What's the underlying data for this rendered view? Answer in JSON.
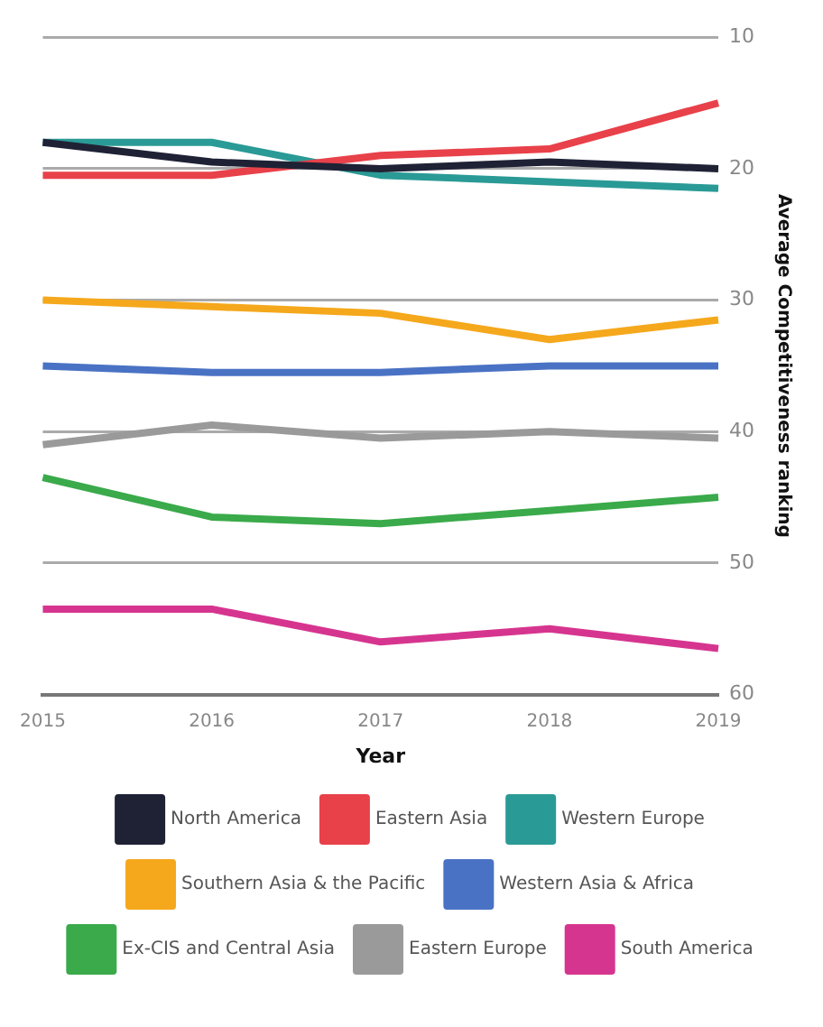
{
  "chart_data": {
    "type": "line",
    "xlabel": "Year",
    "ylabel": "Average Competitiveness ranking",
    "categories": [
      "2015",
      "2016",
      "2017",
      "2018",
      "2019"
    ],
    "series": [
      {
        "name": "North America",
        "color": "#1f2235",
        "values": [
          18,
          19.5,
          20,
          19.5,
          20
        ]
      },
      {
        "name": "Eastern Asia",
        "color": "#e8414a",
        "values": [
          20.5,
          20.5,
          19,
          18.5,
          15
        ]
      },
      {
        "name": "Western Europe",
        "color": "#2a9a96",
        "values": [
          18,
          18,
          20.5,
          21,
          21.5
        ]
      },
      {
        "name": "Southern Asia & the Pacific",
        "color": "#f5a81c",
        "values": [
          30,
          30.5,
          31,
          33,
          31.5
        ]
      },
      {
        "name": "Western Asia & Africa",
        "color": "#4a72c4",
        "values": [
          35,
          35.5,
          35.5,
          35,
          35
        ]
      },
      {
        "name": "Ex-CIS and Central Asia",
        "color": "#3aaa4a",
        "values": [
          43.5,
          46.5,
          47,
          46,
          45
        ]
      },
      {
        "name": "Eastern Europe",
        "color": "#9a9a9a",
        "values": [
          41,
          39.5,
          40.5,
          40,
          40.5
        ]
      },
      {
        "name": "South America",
        "color": "#d6358f",
        "values": [
          53.5,
          53.5,
          56,
          55,
          56.5
        ]
      }
    ],
    "ylim": [
      60,
      10
    ],
    "yticks": [
      10,
      20,
      30,
      40,
      50,
      60
    ],
    "grid": "y",
    "legend": "bottom",
    "marker": "none",
    "line_style": "solid"
  }
}
